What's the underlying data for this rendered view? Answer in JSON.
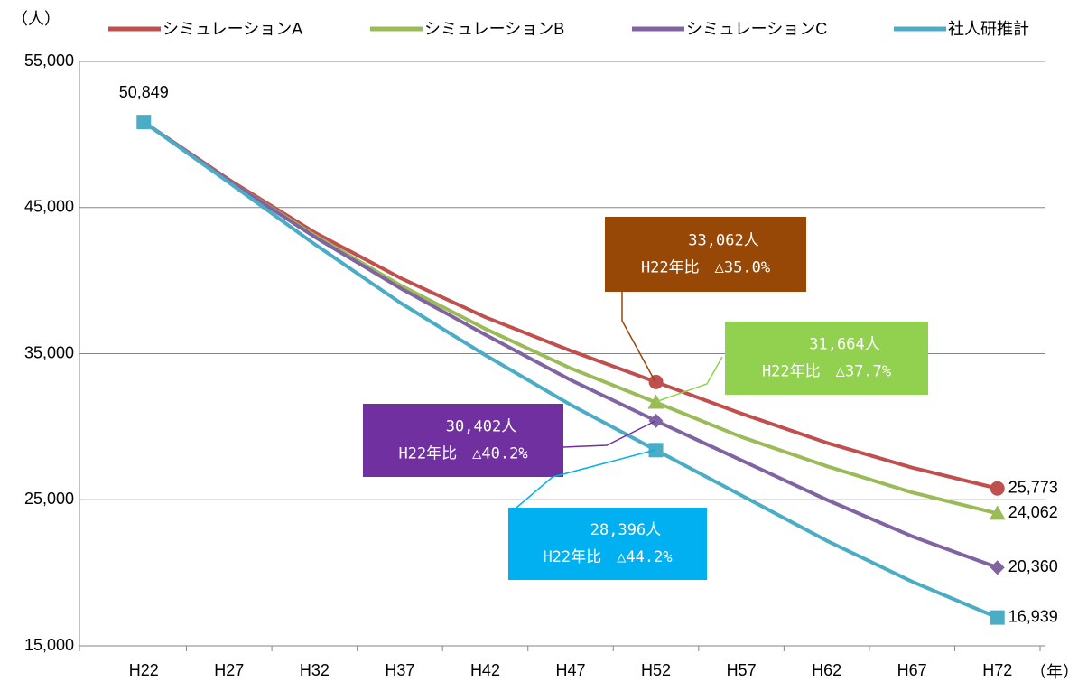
{
  "chart_data": {
    "type": "line",
    "y_label": "（人）",
    "x_label": "（年）",
    "categories": [
      "H22",
      "H27",
      "H32",
      "H37",
      "H42",
      "H47",
      "H52",
      "H57",
      "H62",
      "H67",
      "H72"
    ],
    "ylim": [
      15000,
      55000
    ],
    "yticks": [
      {
        "value": 15000,
        "label": "15,000"
      },
      {
        "value": 25000,
        "label": "25,000"
      },
      {
        "value": 35000,
        "label": "35,000"
      },
      {
        "value": 45000,
        "label": "45,000"
      },
      {
        "value": 55000,
        "label": "55,000"
      }
    ],
    "grid": true,
    "legend": "top",
    "series": [
      {
        "name": "シミュレーションA",
        "color": "#c0504d",
        "marker": "circle",
        "label_color": "#974706",
        "values": [
          50849,
          46900,
          43300,
          40200,
          37500,
          35200,
          33062,
          30900,
          28900,
          27200,
          25773
        ],
        "value_labels": {
          "10": "25,773"
        }
      },
      {
        "name": "シミュレーションB",
        "color": "#9bbb59",
        "marker": "triangle",
        "label_color": "#92d050",
        "values": [
          50849,
          46800,
          43100,
          39700,
          36700,
          34000,
          31664,
          29300,
          27300,
          25500,
          24062
        ],
        "value_labels": {
          "10": "24,062"
        }
      },
      {
        "name": "シミュレーションC",
        "color": "#8064a2",
        "marker": "diamond",
        "label_color": "#7030a0",
        "values": [
          50849,
          46800,
          43000,
          39500,
          36300,
          33200,
          30402,
          27700,
          25000,
          22500,
          20360
        ],
        "value_labels": {
          "10": "20,360"
        }
      },
      {
        "name": "社人研推計",
        "color": "#4bacc6",
        "marker": "square",
        "label_color": "#00b0f0",
        "values": [
          50849,
          46700,
          42500,
          38500,
          34900,
          31500,
          28396,
          25300,
          22200,
          19400,
          16939
        ],
        "value_labels": {
          "0": "50,849",
          "10": "16,939"
        }
      }
    ],
    "annotations": [
      {
        "lines": [
          "33,062人",
          "H22年比　△35.0%"
        ],
        "color": "#974706"
      },
      {
        "lines": [
          "31,664人",
          "H22年比　△37.7%"
        ],
        "color": "#92d050"
      },
      {
        "lines": [
          "30,402人",
          "H22年比　△40.2%"
        ],
        "color": "#7030a0"
      },
      {
        "lines": [
          "28,396人",
          "H22年比　△44.2%"
        ],
        "color": "#00b0f0"
      }
    ]
  }
}
